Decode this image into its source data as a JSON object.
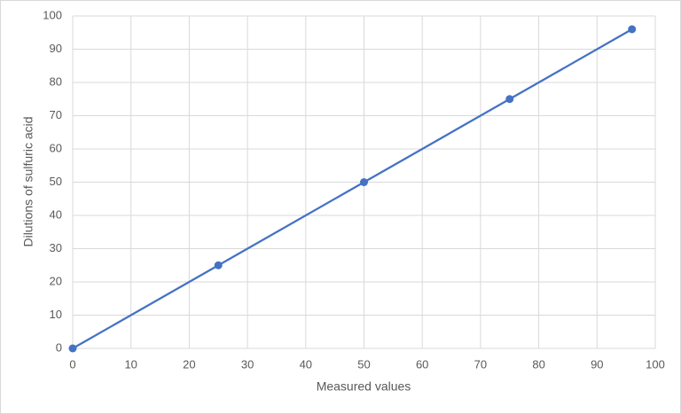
{
  "chart_data": {
    "type": "scatter",
    "line": true,
    "x_label": "Measured values",
    "y_label": "Dilutions of sulfuric acid",
    "x": [
      0,
      25,
      50,
      75,
      96
    ],
    "values": [
      0,
      25,
      50,
      75,
      96
    ],
    "color": "#4472c4",
    "xlim": [
      0,
      100
    ],
    "xticks": [
      0,
      10,
      20,
      30,
      40,
      50,
      60,
      70,
      80,
      90,
      100
    ],
    "ylim": [
      0,
      100
    ],
    "yticks": [
      0,
      10,
      20,
      30,
      40,
      50,
      60,
      70,
      80,
      90,
      100
    ],
    "grid": true
  }
}
